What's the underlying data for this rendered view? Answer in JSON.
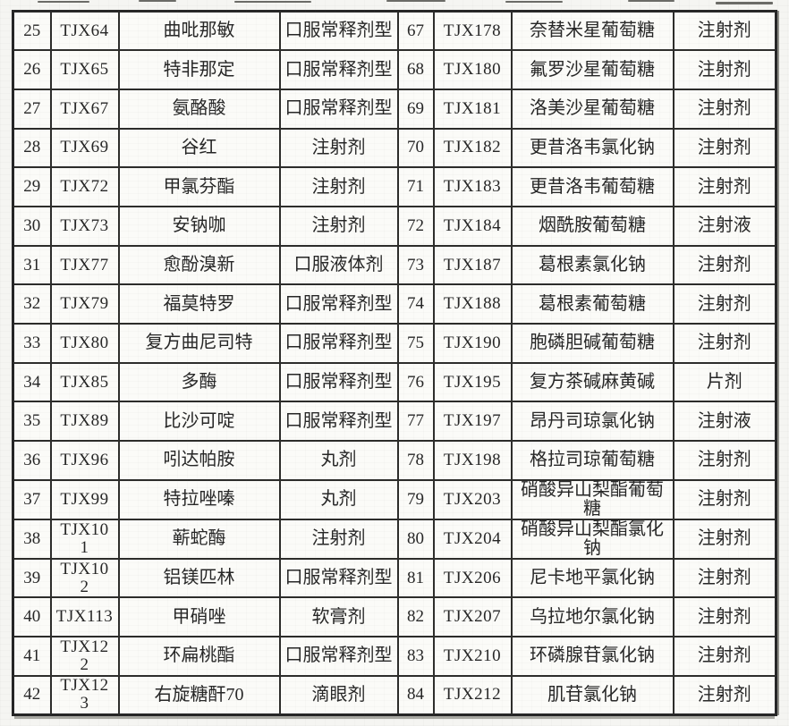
{
  "document": {
    "kind": "scanned drug list table",
    "colors": {
      "paper": "#fbfbf8",
      "border": "#2c2c2a",
      "text": "#262626"
    }
  },
  "table": {
    "rows": [
      [
        "25",
        "TJX64",
        "曲吡那敏",
        "口服常释剂型",
        "67",
        "TJX178",
        "奈替米星葡萄糖",
        "注射剂"
      ],
      [
        "26",
        "TJX65",
        "特非那定",
        "口服常释剂型",
        "68",
        "TJX180",
        "氟罗沙星葡萄糖",
        "注射剂"
      ],
      [
        "27",
        "TJX67",
        "氨酪酸",
        "口服常释剂型",
        "69",
        "TJX181",
        "洛美沙星葡萄糖",
        "注射剂"
      ],
      [
        "28",
        "TJX69",
        "谷红",
        "注射剂",
        "70",
        "TJX182",
        "更昔洛韦氯化钠",
        "注射剂"
      ],
      [
        "29",
        "TJX72",
        "甲氯芬酯",
        "注射剂",
        "71",
        "TJX183",
        "更昔洛韦葡萄糖",
        "注射剂"
      ],
      [
        "30",
        "TJX73",
        "安钠咖",
        "注射剂",
        "72",
        "TJX184",
        "烟酰胺葡萄糖",
        "注射液"
      ],
      [
        "31",
        "TJX77",
        "愈酚溴新",
        "口服液体剂",
        "73",
        "TJX187",
        "葛根素氯化钠",
        "注射剂"
      ],
      [
        "32",
        "TJX79",
        "福莫特罗",
        "口服常释剂型",
        "74",
        "TJX188",
        "葛根素葡萄糖",
        "注射剂"
      ],
      [
        "33",
        "TJX80",
        "复方曲尼司特",
        "口服常释剂型",
        "75",
        "TJX190",
        "胞磷胆碱葡萄糖",
        "注射剂"
      ],
      [
        "34",
        "TJX85",
        "多酶",
        "口服常释剂型",
        "76",
        "TJX195",
        "复方茶碱麻黄碱",
        "片剂"
      ],
      [
        "35",
        "TJX89",
        "比沙可啶",
        "口服常释剂型",
        "77",
        "TJX197",
        "昂丹司琼氯化钠",
        "注射液"
      ],
      [
        "36",
        "TJX96",
        "吲达帕胺",
        "丸剂",
        "78",
        "TJX198",
        "格拉司琼葡萄糖",
        "注射剂"
      ],
      [
        "37",
        "TJX99",
        "特拉唑嗪",
        "丸剂",
        "79",
        "TJX203",
        "硝酸异山梨酯葡萄糖",
        "注射剂"
      ],
      [
        "38",
        "TJX101",
        "蕲蛇酶",
        "注射剂",
        "80",
        "TJX204",
        "硝酸异山梨酯氯化钠",
        "注射剂"
      ],
      [
        "39",
        "TJX102",
        "铝镁匹林",
        "口服常释剂型",
        "81",
        "TJX206",
        "尼卡地平氯化钠",
        "注射剂"
      ],
      [
        "40",
        "TJX113",
        "甲硝唑",
        "软膏剂",
        "82",
        "TJX207",
        "乌拉地尔氯化钠",
        "注射剂"
      ],
      [
        "41",
        "TJX122",
        "环扁桃酯",
        "口服常释剂型",
        "83",
        "TJX210",
        "环磷腺苷氯化钠",
        "注射剂"
      ],
      [
        "42",
        "TJX123",
        "右旋糖酐70",
        "滴眼剂",
        "84",
        "TJX212",
        "肌苷氯化钠",
        "注射剂"
      ]
    ]
  }
}
